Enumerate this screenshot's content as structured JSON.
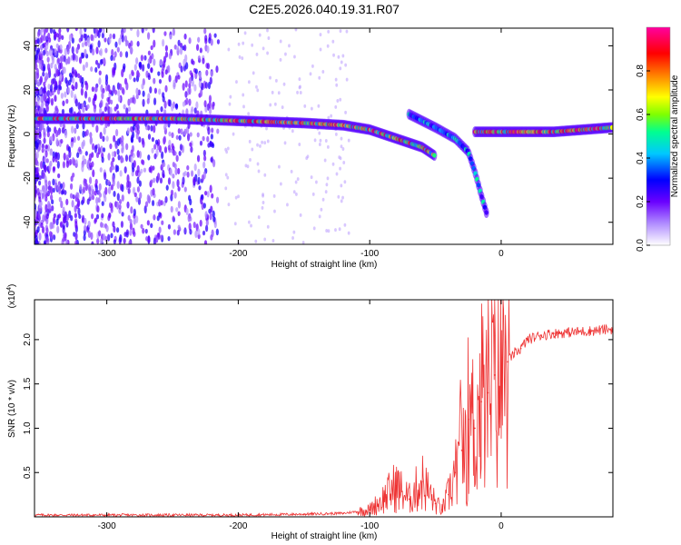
{
  "figure_title": "C2E5.2026.040.19.31.R07",
  "chart_data": [
    {
      "type": "heatmap",
      "title": "C2E5.2026.040.19.31.R07",
      "xlabel": "Height of straight line (km)",
      "ylabel": "Frequency (Hz)",
      "xlim": [
        -355,
        85
      ],
      "ylim": [
        -50,
        48
      ],
      "xticks": [
        -300,
        -200,
        -100,
        0
      ],
      "yticks": [
        -40,
        -20,
        0,
        20,
        40
      ],
      "colorbar": {
        "label": "Normalized spectral amplitude",
        "range": [
          0,
          1
        ],
        "ticks": [
          0.0,
          0.2,
          0.4,
          0.6,
          0.8
        ],
        "tick_labels": [
          "0.0",
          "0.2",
          "0.4",
          "0.6",
          "0.8"
        ],
        "colormap": [
          "#ffffff",
          "#7700ff",
          "#0000ff",
          "#00c8ff",
          "#00ff80",
          "#7fff00",
          "#ffff00",
          "#ff8000",
          "#ff0000",
          "#ff00a0"
        ]
      },
      "features": [
        {
          "name": "main carrier track",
          "points": [
            [
              -355,
              7
            ],
            [
              -250,
              7
            ],
            [
              -200,
              6
            ],
            [
              -150,
              5
            ],
            [
              -120,
              4
            ],
            [
              -100,
              2
            ],
            [
              -80,
              -2
            ],
            [
              -60,
              -6
            ],
            [
              -50,
              -10
            ]
          ],
          "peak_amplitude": 0.9
        },
        {
          "name": "branch track",
          "points": [
            [
              -70,
              9
            ],
            [
              -50,
              3
            ],
            [
              -35,
              -2
            ],
            [
              -25,
              -8
            ],
            [
              -20,
              -17
            ],
            [
              -15,
              -28
            ],
            [
              -10,
              -38
            ]
          ],
          "peak_amplitude": 0.5
        },
        {
          "name": "post-occultation carrier",
          "points": [
            [
              -20,
              1
            ],
            [
              0,
              1
            ],
            [
              40,
              1
            ],
            [
              85,
              3
            ]
          ],
          "peak_amplitude": 0.95
        }
      ]
    },
    {
      "type": "line",
      "xlabel": "Height of straight line (km)",
      "ylabel": "SNR (10 * v/v)",
      "y_multiplier_label": "(x10",
      "y_multiplier_exponent": "4",
      "y_multiplier_close": ")",
      "xlim": [
        -355,
        85
      ],
      "ylim": [
        0,
        2.45
      ],
      "xticks": [
        -300,
        -200,
        -100,
        0
      ],
      "yticks": [
        0.5,
        1.0,
        1.5,
        2.0
      ],
      "ytick_labels": [
        "0.5",
        "1.0",
        "1.5",
        "2.0"
      ],
      "color": "#ee3333",
      "series": [
        {
          "name": "SNR",
          "x": [
            -355,
            -300,
            -250,
            -200,
            -150,
            -120,
            -100,
            -90,
            -80,
            -70,
            -60,
            -50,
            -45,
            -40,
            -35,
            -30,
            -25,
            -20,
            -15,
            -10,
            -5,
            0,
            5,
            10,
            15,
            20,
            30,
            40,
            50,
            60,
            70,
            85
          ],
          "y": [
            0.02,
            0.02,
            0.02,
            0.02,
            0.03,
            0.04,
            0.08,
            0.2,
            0.35,
            0.2,
            0.4,
            0.15,
            0.08,
            0.25,
            0.5,
            0.75,
            1.1,
            1.0,
            1.3,
            1.4,
            1.6,
            1.7,
            1.75,
            1.85,
            1.9,
            2.0,
            2.05,
            2.07,
            2.08,
            2.09,
            2.1,
            2.12
          ]
        }
      ]
    }
  ]
}
